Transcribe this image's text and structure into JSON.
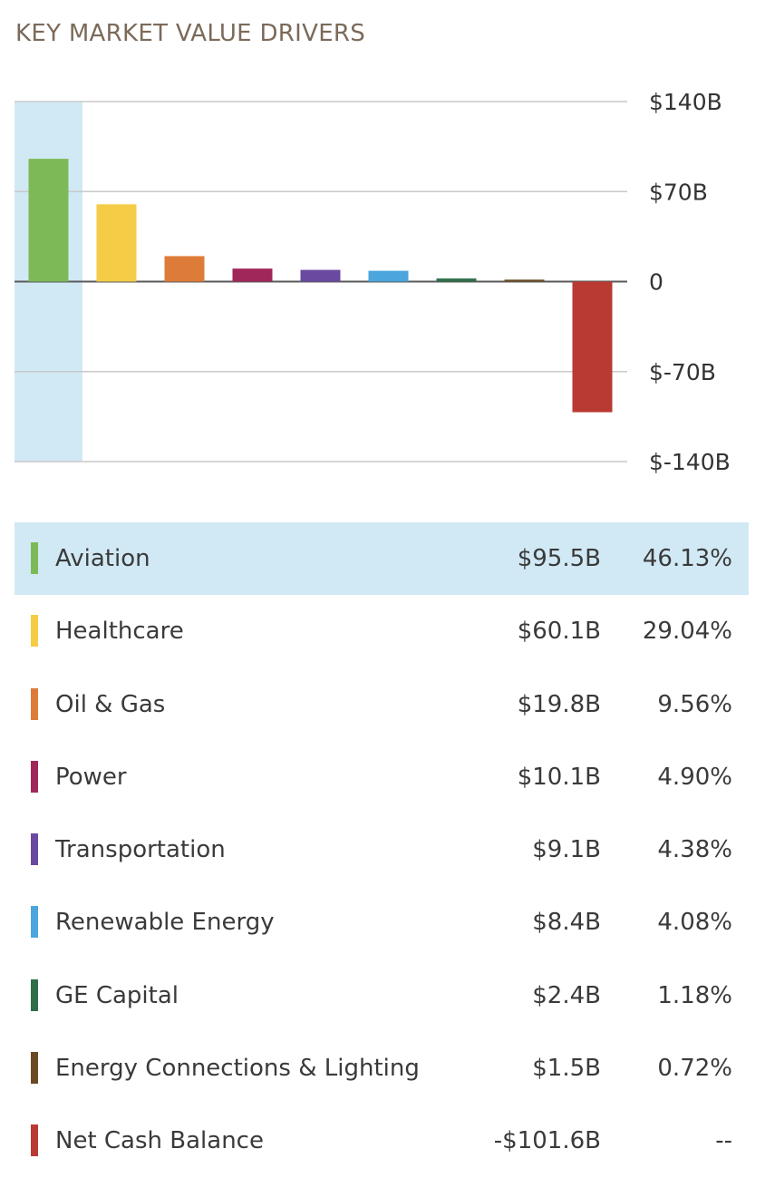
{
  "title": "KEY MARKET VALUE DRIVERS",
  "highlight_color": "#d1e9f5",
  "chart_data": {
    "type": "bar",
    "title": "KEY MARKET VALUE DRIVERS",
    "xlabel": "",
    "ylabel": "",
    "ylim": [
      -140,
      140
    ],
    "y_ticks": [
      140,
      70,
      0,
      -70,
      -140
    ],
    "y_tick_labels": [
      "$140B",
      "$70B",
      "0",
      "$-70B",
      "$-140B"
    ],
    "grid": true,
    "selected_index": 0,
    "categories": [
      "Aviation",
      "Healthcare",
      "Oil & Gas",
      "Power",
      "Transportation",
      "Renewable Energy",
      "GE Capital",
      "Energy Connections & Lighting",
      "Net Cash Balance"
    ],
    "values": [
      95.5,
      60.1,
      19.8,
      10.1,
      9.1,
      8.4,
      2.4,
      1.5,
      -101.6
    ],
    "colors": [
      "#7dba57",
      "#f5cc45",
      "#dd7c38",
      "#a0275a",
      "#6a4aa0",
      "#4aa6dd",
      "#2f6e48",
      "#6b4a23",
      "#b93a32"
    ]
  },
  "legend": {
    "rows": [
      {
        "label": "Aviation",
        "value": "$95.5B",
        "pct": "46.13%"
      },
      {
        "label": "Healthcare",
        "value": "$60.1B",
        "pct": "29.04%"
      },
      {
        "label": "Oil & Gas",
        "value": "$19.8B",
        "pct": "9.56%"
      },
      {
        "label": "Power",
        "value": "$10.1B",
        "pct": "4.90%"
      },
      {
        "label": "Transportation",
        "value": "$9.1B",
        "pct": "4.38%"
      },
      {
        "label": "Renewable Energy",
        "value": "$8.4B",
        "pct": "4.08%"
      },
      {
        "label": "GE Capital",
        "value": "$2.4B",
        "pct": "1.18%"
      },
      {
        "label": "Energy Connections & Lighting",
        "value": "$1.5B",
        "pct": "0.72%"
      },
      {
        "label": "Net Cash Balance",
        "value": "-$101.6B",
        "pct": "--"
      }
    ]
  }
}
